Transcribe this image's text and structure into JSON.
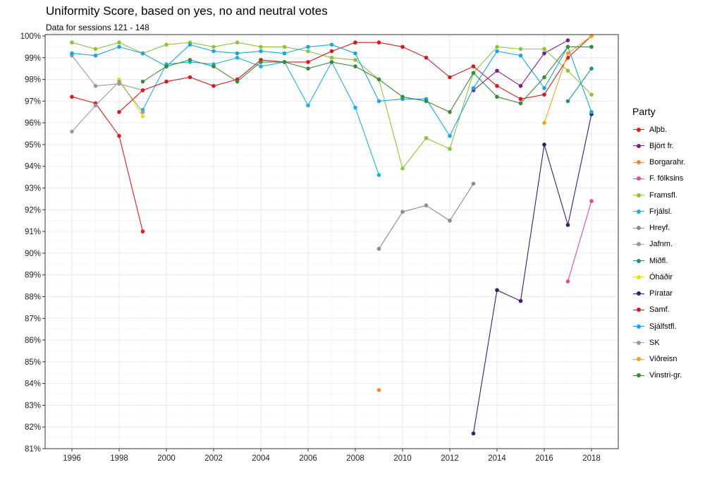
{
  "title": "Uniformity Score, based on yes, no and neutral votes",
  "subtitle": "Data for sessions 121 - 148",
  "chart_data": {
    "type": "line",
    "title": "Uniformity Score, based on yes, no and neutral votes",
    "subtitle": "Data for sessions 121 - 148",
    "xlabel": "",
    "ylabel": "",
    "xlim": [
      1996,
      2018
    ],
    "ylim": [
      81,
      100
    ],
    "x_ticks": [
      "1996",
      "1998",
      "2000",
      "2002",
      "2004",
      "2006",
      "2008",
      "2010",
      "2012",
      "2014",
      "2016",
      "2018"
    ],
    "y_ticks": [
      "81%",
      "82%",
      "83%",
      "84%",
      "85%",
      "86%",
      "87%",
      "88%",
      "89%",
      "90%",
      "91%",
      "92%",
      "93%",
      "94%",
      "95%",
      "96%",
      "97%",
      "98%",
      "99%",
      "100%"
    ],
    "grid": true,
    "legend_position": "right",
    "legend_title": "Party",
    "series": [
      {
        "name": "Alþb.",
        "color": "#e41a1c",
        "x": [
          1996,
          1997,
          1998,
          1999
        ],
        "y": [
          97.2,
          96.9,
          95.4,
          91.0
        ]
      },
      {
        "name": "Björt fr.",
        "color": "#7b1f86",
        "x": [
          2013,
          2014,
          2015,
          2016,
          2017
        ],
        "y": [
          97.5,
          98.4,
          97.7,
          99.2,
          99.8
        ]
      },
      {
        "name": "Borgarahr.",
        "color": "#f0882e",
        "x": [
          2009
        ],
        "y": [
          83.7
        ]
      },
      {
        "name": "F. fólksins",
        "color": "#e7489a",
        "x": [
          2017,
          2018
        ],
        "y": [
          88.7,
          92.4
        ]
      },
      {
        "name": "Framsfl.",
        "color": "#8cc43e",
        "x": [
          1996,
          1997,
          1998,
          1999,
          2000,
          2001,
          2002,
          2003,
          2004,
          2005,
          2006,
          2007,
          2008,
          2009,
          2010,
          2011,
          2012,
          2013,
          2014,
          2015,
          2016,
          2017,
          2018
        ],
        "y": [
          99.7,
          99.4,
          99.7,
          99.2,
          99.6,
          99.7,
          99.5,
          99.7,
          99.5,
          99.5,
          99.3,
          99.0,
          98.9,
          98.0,
          93.9,
          95.3,
          94.8,
          98.3,
          99.5,
          99.4,
          99.4,
          98.4,
          97.3
        ]
      },
      {
        "name": "Frjálsl.",
        "color": "#17b2e8",
        "x": [
          1999,
          2000,
          2001,
          2002,
          2003,
          2004,
          2005,
          2006,
          2007,
          2008,
          2009
        ],
        "y": [
          96.6,
          98.7,
          98.8,
          98.7,
          99.0,
          98.6,
          98.8,
          96.8,
          98.8,
          96.7,
          93.6
        ]
      },
      {
        "name": "Hreyf.",
        "color": "#8c8c8c",
        "x": [
          2009,
          2010,
          2011,
          2012,
          2013
        ],
        "y": [
          90.2,
          91.9,
          92.2,
          91.5,
          93.2
        ]
      },
      {
        "name": "Jafnm.",
        "color": "#9a9a9a",
        "x": [
          1996,
          1997,
          1998,
          1999
        ],
        "y": [
          99.1,
          97.7,
          97.8,
          97.5
        ]
      },
      {
        "name": "Miðfl.",
        "color": "#1b9284",
        "x": [
          2017,
          2018
        ],
        "y": [
          97.0,
          98.5
        ]
      },
      {
        "name": "Óháðir",
        "color": "#e6e01a",
        "x": [
          1998,
          1999
        ],
        "y": [
          98.0,
          96.3
        ]
      },
      {
        "name": "Píratar",
        "color": "#3b1b6e",
        "x": [
          2013,
          2014,
          2015,
          2016,
          2017,
          2018
        ],
        "y": [
          81.7,
          88.3,
          87.8,
          95.0,
          91.3,
          96.4
        ]
      },
      {
        "name": "Samf.",
        "color": "#d7191c",
        "x": [
          1998,
          1999,
          2000,
          2001,
          2002,
          2003,
          2004,
          2005,
          2006,
          2007,
          2008,
          2009,
          2010,
          2011,
          2012,
          2013,
          2014,
          2015,
          2016,
          2017,
          2018
        ],
        "y": [
          96.5,
          97.5,
          97.9,
          98.1,
          97.7,
          98.0,
          98.9,
          98.8,
          98.8,
          99.3,
          99.7,
          99.7,
          99.5,
          99.0,
          98.1,
          98.6,
          97.7,
          97.1,
          97.3,
          99.0,
          100.0
        ]
      },
      {
        "name": "Sjálfstfl.",
        "color": "#14a8e0",
        "x": [
          1996,
          1997,
          1998,
          1999,
          2000,
          2001,
          2002,
          2003,
          2004,
          2005,
          2006,
          2007,
          2008,
          2009,
          2010,
          2011,
          2012,
          2013,
          2014,
          2015,
          2016,
          2017,
          2018
        ],
        "y": [
          99.2,
          99.1,
          99.5,
          99.2,
          98.6,
          99.6,
          99.3,
          99.2,
          99.3,
          99.2,
          99.5,
          99.6,
          99.2,
          97.0,
          97.1,
          97.1,
          95.4,
          97.6,
          99.3,
          99.1,
          97.6,
          99.5,
          96.5
        ]
      },
      {
        "name": "SK",
        "color": "#9b9b9b",
        "x": [
          1996,
          1997,
          1998,
          1999
        ],
        "y": [
          95.6,
          96.8,
          97.9,
          96.5
        ]
      },
      {
        "name": "Viðreisn",
        "color": "#f5a11b",
        "x": [
          2016,
          2017,
          2018
        ],
        "y": [
          96.0,
          99.2,
          100.0
        ]
      },
      {
        "name": "Vinstri-gr.",
        "color": "#3a8a3a",
        "x": [
          1999,
          2000,
          2001,
          2002,
          2003,
          2004,
          2005,
          2006,
          2007,
          2008,
          2009,
          2010,
          2011,
          2012,
          2013,
          2014,
          2015,
          2016,
          2017,
          2018
        ],
        "y": [
          97.9,
          98.6,
          98.9,
          98.6,
          97.9,
          98.8,
          98.8,
          98.5,
          98.8,
          98.6,
          98.0,
          97.2,
          97.0,
          96.5,
          98.3,
          97.2,
          96.9,
          98.1,
          99.5,
          99.5
        ]
      }
    ]
  }
}
